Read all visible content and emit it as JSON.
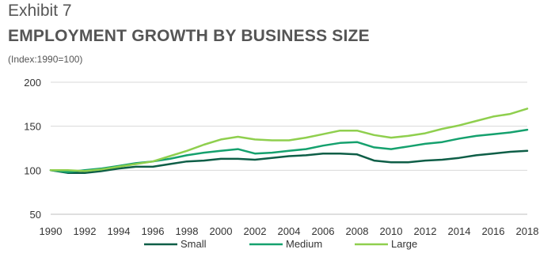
{
  "header": {
    "exhibit": "Exhibit 7",
    "title": "EMPLOYMENT GROWTH BY BUSINESS SIZE",
    "subtitle": "(Index:1990=100)"
  },
  "chart_data": {
    "type": "line",
    "x": [
      1990,
      1991,
      1992,
      1993,
      1994,
      1995,
      1996,
      1997,
      1998,
      1999,
      2000,
      2001,
      2002,
      2003,
      2004,
      2005,
      2006,
      2007,
      2008,
      2009,
      2010,
      2011,
      2012,
      2013,
      2014,
      2015,
      2016,
      2017,
      2018
    ],
    "x_tick_labels": [
      "1990",
      "1992",
      "1994",
      "1996",
      "1998",
      "2000",
      "2002",
      "2004",
      "2006",
      "2008",
      "2010",
      "2012",
      "2014",
      "2016",
      "2018"
    ],
    "y_tick_labels": [
      "50",
      "100",
      "150",
      "200"
    ],
    "ylim": [
      50,
      200
    ],
    "y_ticks": [
      50,
      100,
      150,
      200
    ],
    "grid": true,
    "legend_position": "bottom",
    "series": [
      {
        "name": "Small",
        "color": "#0e5e47",
        "values": [
          100,
          97,
          97,
          99,
          102,
          104,
          104,
          107,
          110,
          111,
          113,
          113,
          112,
          114,
          116,
          117,
          119,
          119,
          118,
          111,
          109,
          109,
          111,
          112,
          114,
          117,
          119,
          121,
          122
        ]
      },
      {
        "name": "Medium",
        "color": "#15a16e",
        "values": [
          100,
          98,
          100,
          102,
          105,
          108,
          110,
          113,
          117,
          120,
          122,
          124,
          119,
          120,
          122,
          124,
          128,
          131,
          132,
          126,
          124,
          127,
          130,
          132,
          136,
          139,
          141,
          143,
          146
        ]
      },
      {
        "name": "Large",
        "color": "#8fcf4e",
        "values": [
          100,
          100,
          99,
          101,
          104,
          107,
          110,
          116,
          122,
          129,
          135,
          138,
          135,
          134,
          134,
          137,
          141,
          145,
          145,
          140,
          137,
          139,
          142,
          147,
          151,
          156,
          161,
          164,
          170
        ]
      }
    ]
  }
}
